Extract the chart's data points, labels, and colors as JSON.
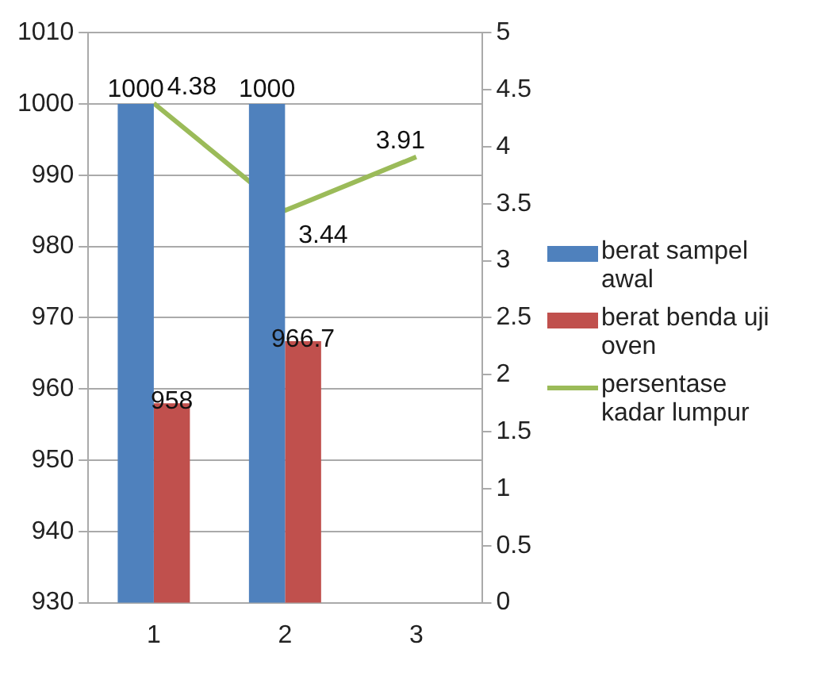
{
  "chart_data": {
    "type": "bar",
    "categories": [
      "1",
      "2",
      "3"
    ],
    "series": [
      {
        "name": "berat sampel awal",
        "color": "#4f81bd",
        "values": [
          1000,
          1000,
          null
        ]
      },
      {
        "name": "berat benda uji oven",
        "color": "#c0504d",
        "values": [
          958,
          966.7,
          null
        ]
      },
      {
        "name": "persentase kadar lumpur",
        "type": "line",
        "axis": "y2",
        "color": "#9bbb59",
        "values": [
          4.38,
          3.44,
          3.91
        ]
      }
    ],
    "ylim": [
      930,
      1010
    ],
    "yticks": [
      930,
      940,
      950,
      960,
      970,
      980,
      990,
      1000,
      1010
    ],
    "y2lim": [
      0,
      5
    ],
    "y2ticks": [
      0,
      0.5,
      1,
      1.5,
      2,
      2.5,
      3,
      3.5,
      4,
      4.5,
      5
    ],
    "grid": "y",
    "legend": "right",
    "marker": "none",
    "line_style": "solid",
    "data_labels": true
  }
}
